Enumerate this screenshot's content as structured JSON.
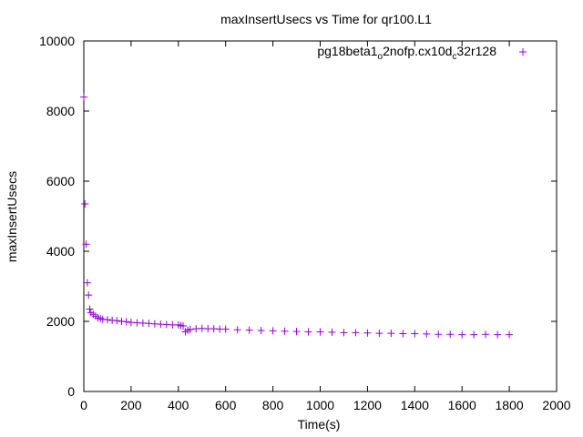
{
  "chart_data": {
    "type": "scatter",
    "title": "maxInsertUsecs vs Time for qr100.L1",
    "xlabel": "Time(s)",
    "ylabel": "maxInsertUsecs",
    "xlim": [
      0,
      2000
    ],
    "ylim": [
      0,
      10000
    ],
    "xticks": [
      "0",
      "200",
      "400",
      "600",
      "800",
      "1000",
      "1200",
      "1400",
      "1600",
      "1800",
      "2000"
    ],
    "yticks": [
      "0",
      "2000",
      "4000",
      "6000",
      "8000",
      "10000"
    ],
    "grid": false,
    "legend_position": "top-right",
    "legend": {
      "name_parts": [
        "pg18beta1",
        "o",
        "2nofp.cx10d",
        "c",
        "32r128"
      ],
      "marker": "+"
    },
    "series_color": "#9400d3",
    "series": [
      {
        "name": "pg18beta1_o2nofp.cx10d_c32r128",
        "x": [
          0,
          5,
          10,
          15,
          20,
          25,
          30,
          40,
          50,
          60,
          70,
          80,
          100,
          120,
          140,
          160,
          180,
          200,
          225,
          250,
          275,
          300,
          325,
          350,
          375,
          400,
          410,
          420,
          430,
          440,
          450,
          475,
          500,
          525,
          550,
          575,
          600,
          650,
          700,
          750,
          800,
          850,
          900,
          950,
          1000,
          1050,
          1100,
          1150,
          1200,
          1250,
          1300,
          1350,
          1400,
          1450,
          1500,
          1550,
          1600,
          1650,
          1700,
          1750,
          1800
        ],
        "y": [
          8400,
          5350,
          4200,
          3100,
          2750,
          2350,
          2250,
          2200,
          2150,
          2100,
          2080,
          2060,
          2050,
          2030,
          2020,
          2000,
          1990,
          1970,
          1960,
          1950,
          1940,
          1930,
          1920,
          1910,
          1900,
          1900,
          1880,
          1870,
          1700,
          1750,
          1770,
          1790,
          1800,
          1790,
          1790,
          1780,
          1780,
          1760,
          1750,
          1740,
          1730,
          1720,
          1710,
          1700,
          1700,
          1690,
          1680,
          1680,
          1670,
          1660,
          1660,
          1650,
          1650,
          1640,
          1630,
          1630,
          1620,
          1620,
          1630,
          1620,
          1620
        ]
      }
    ]
  }
}
